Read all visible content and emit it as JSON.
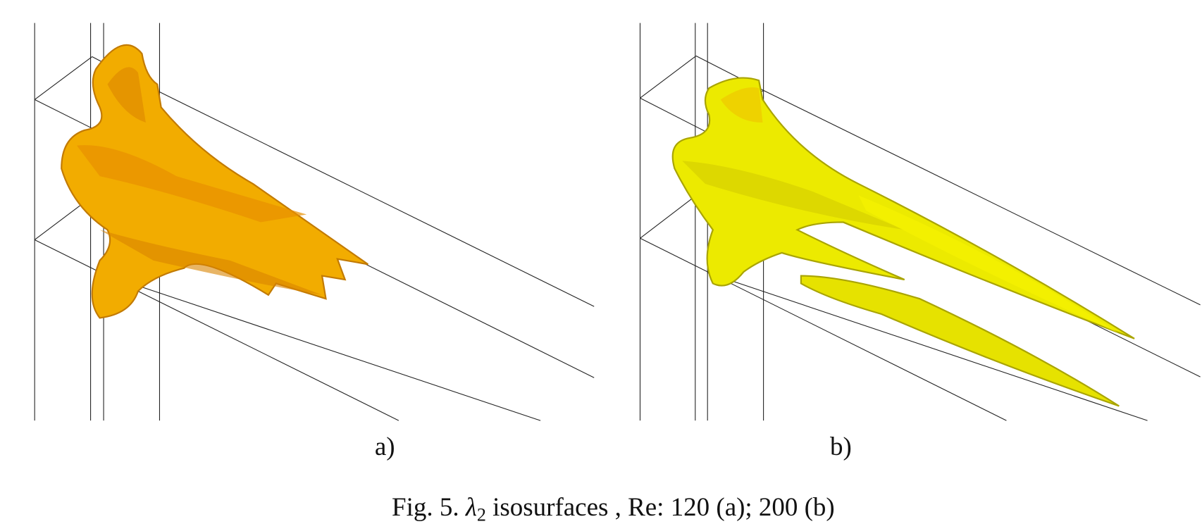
{
  "panels": [
    {
      "label": "a)"
    },
    {
      "label": "b)"
    }
  ],
  "caption": {
    "label": "Fig. 5.",
    "symbol": "λ",
    "subscript": "2",
    "text": "isosurfaces , Re: 120 (a); 200 (b)"
  }
}
